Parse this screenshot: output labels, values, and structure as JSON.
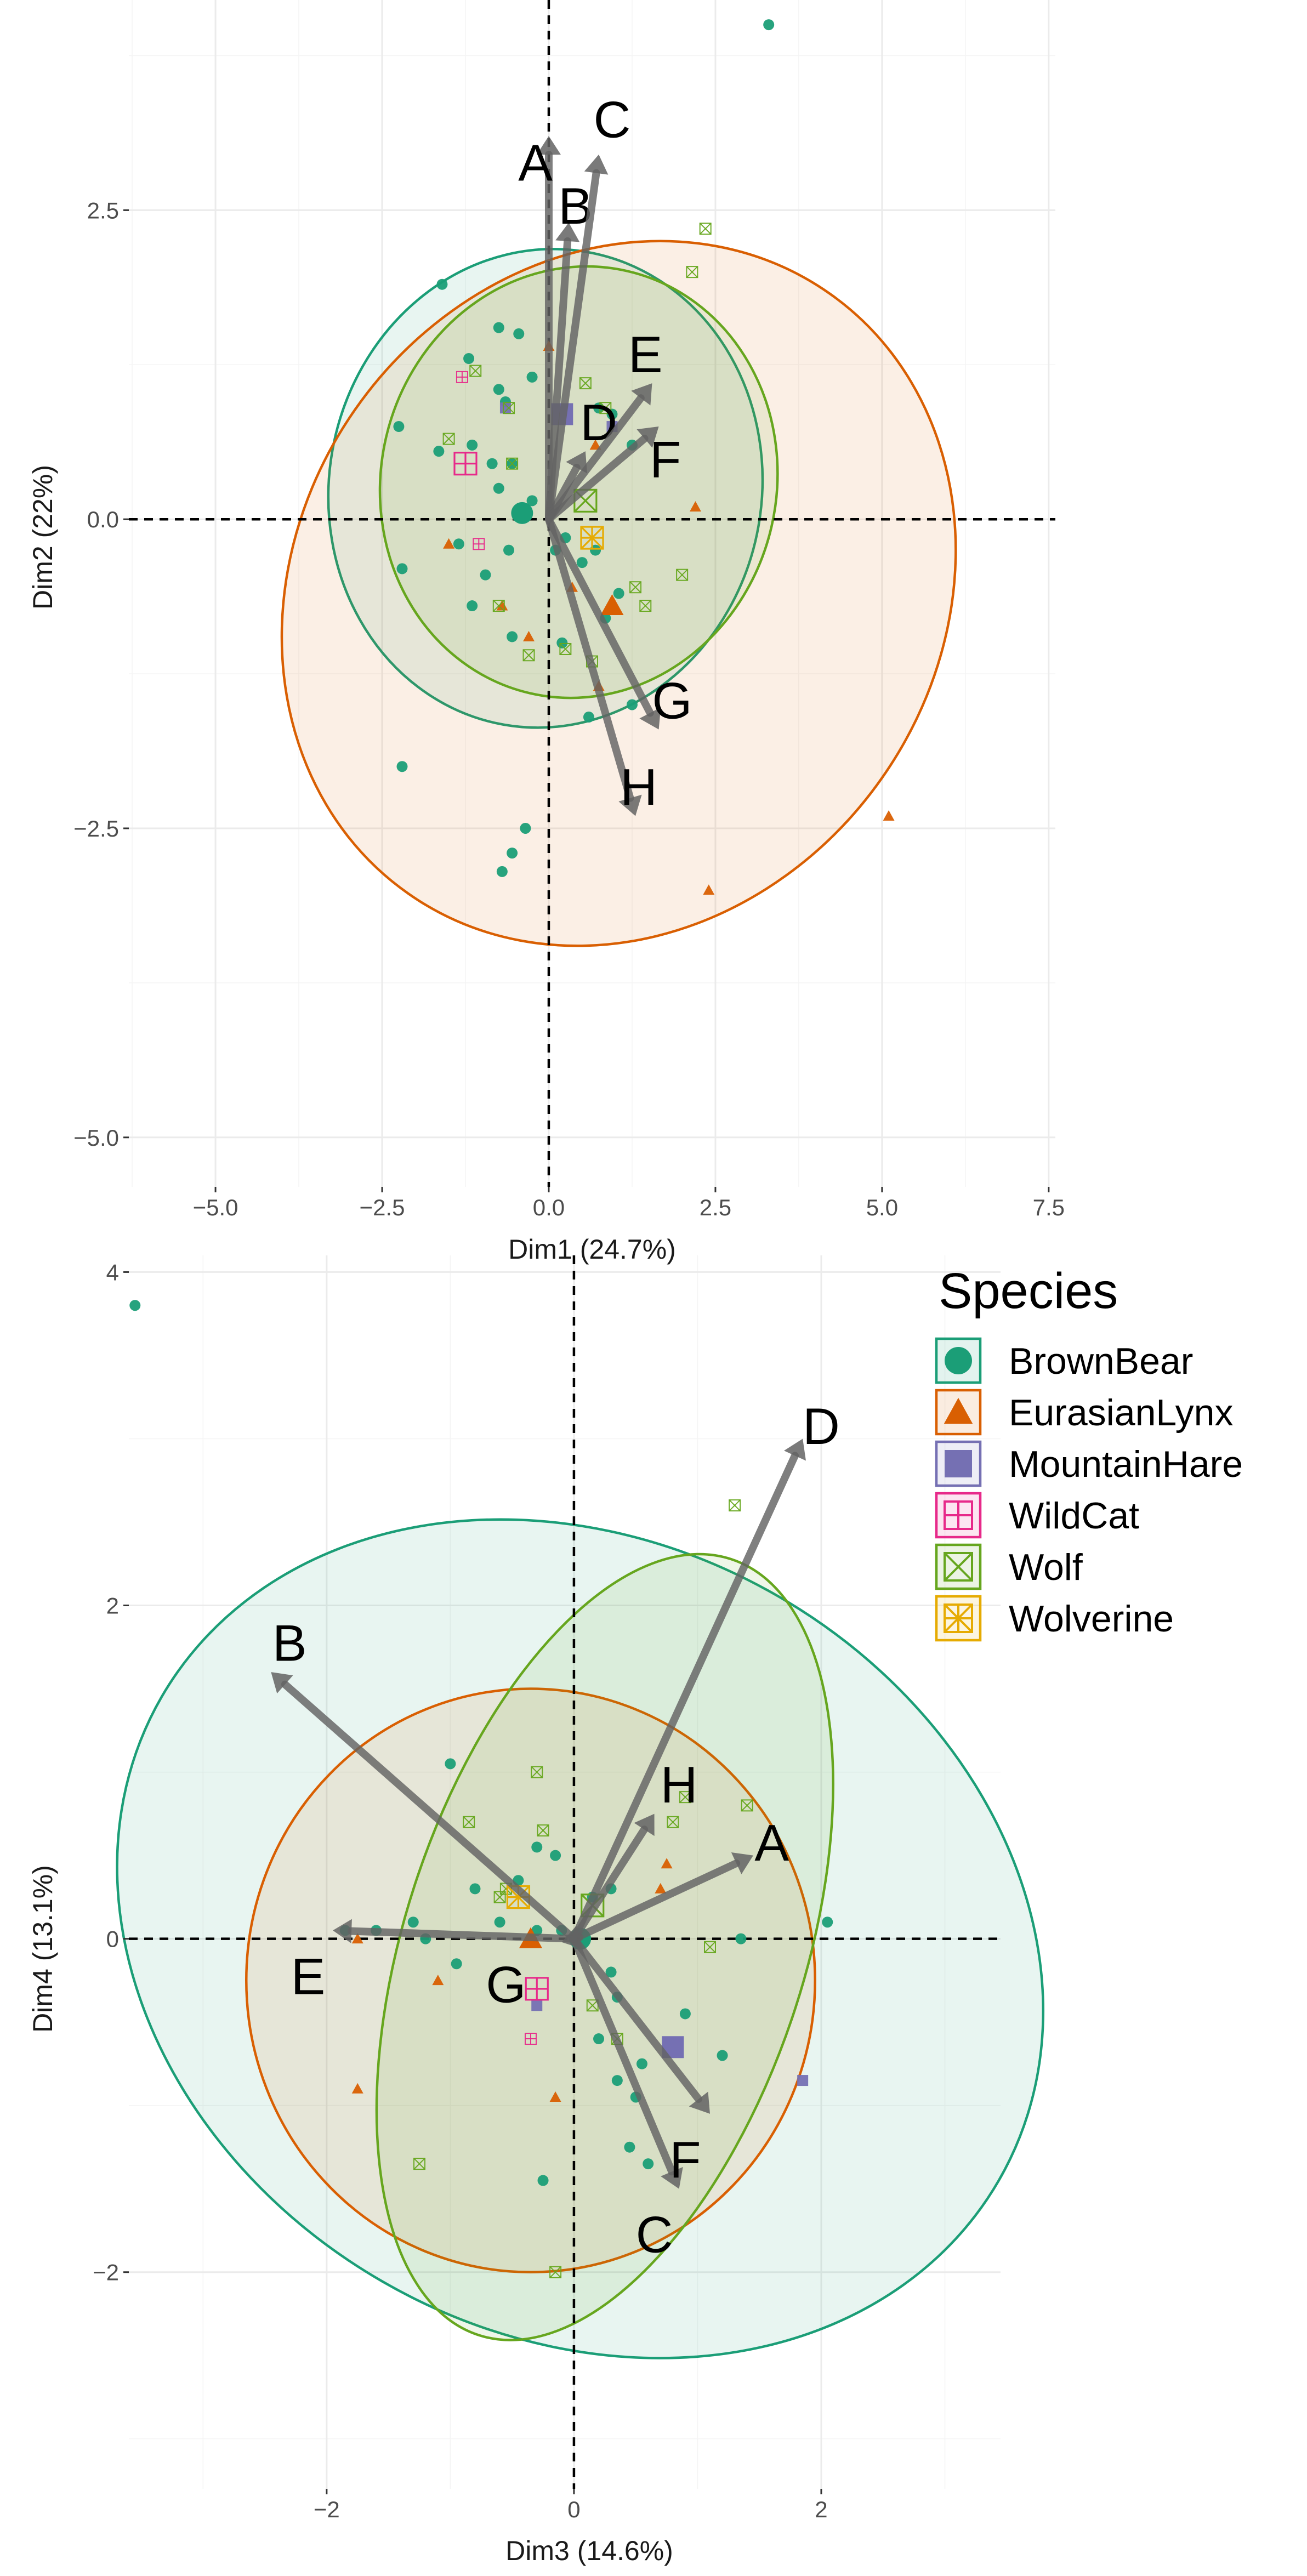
{
  "colors": {
    "BrownBear": "#1b9e77",
    "EurasianLynx": "#d95f02",
    "MountainHare": "#7570b3",
    "WildCat": "#e7298a",
    "Wolf": "#66a61e",
    "Wolverine": "#e6ab02"
  },
  "legend": {
    "title": "Species",
    "items": [
      {
        "name": "BrownBear",
        "shape": "circle"
      },
      {
        "name": "EurasianLynx",
        "shape": "triangle"
      },
      {
        "name": "MountainHare",
        "shape": "square"
      },
      {
        "name": "WildCat",
        "shape": "square-plus"
      },
      {
        "name": "Wolf",
        "shape": "square-x"
      },
      {
        "name": "Wolverine",
        "shape": "asterisk-square"
      }
    ]
  },
  "chart_data": [
    {
      "type": "scatter",
      "id": "top",
      "subtype": "pca-biplot",
      "xlabel": "Dim1 (24.7%)",
      "ylabel": "Dim2 (22%)",
      "xlim": [
        -6.3,
        7.6
      ],
      "ylim": [
        -5.4,
        4.2
      ],
      "xticks": [
        -5,
        -2.5,
        0,
        2.5,
        5,
        7.5
      ],
      "xtick_labels": [
        "−5.0",
        "−2.5",
        "0.0",
        "2.5",
        "5.0",
        "7.5"
      ],
      "yticks": [
        -5,
        -2.5,
        0,
        2.5
      ],
      "ytick_labels": [
        "−5.0",
        "−2.5",
        "0.0",
        "2.5"
      ],
      "arrows": [
        {
          "label": "A",
          "x": 0.0,
          "y": 3.1,
          "lx": -0.2,
          "ly": 2.85
        },
        {
          "label": "B",
          "x": 0.3,
          "y": 2.4,
          "lx": 0.4,
          "ly": 2.5
        },
        {
          "label": "C",
          "x": 0.75,
          "y": 2.95,
          "lx": 0.95,
          "ly": 3.2
        },
        {
          "label": "D",
          "x": 0.55,
          "y": 0.55,
          "lx": 0.75,
          "ly": 0.75
        },
        {
          "label": "E",
          "x": 1.55,
          "y": 1.1,
          "lx": 1.45,
          "ly": 1.3
        },
        {
          "label": "F",
          "x": 1.65,
          "y": 0.75,
          "lx": 1.75,
          "ly": 0.45
        },
        {
          "label": "G",
          "x": 1.65,
          "y": -1.7,
          "lx": 1.85,
          "ly": -1.5
        },
        {
          "label": "H",
          "x": 1.3,
          "y": -2.4,
          "lx": 1.35,
          "ly": -2.2
        }
      ],
      "ellipses": [
        {
          "species": "BrownBear",
          "cx": -0.05,
          "cy": 0.25,
          "rx": 3.6,
          "ry": 1.75,
          "angle": -80
        },
        {
          "species": "EurasianLynx",
          "cx": 1.05,
          "cy": -0.6,
          "rx": 5.5,
          "ry": 2.6,
          "angle": -55
        },
        {
          "species": "Wolf",
          "cx": 0.45,
          "cy": 0.3,
          "rx": 3.25,
          "ry": 1.6,
          "angle": -77
        }
      ],
      "points": [
        {
          "species": "BrownBear",
          "x": 3.3,
          "y": 4.0
        },
        {
          "species": "BrownBear",
          "x": -1.6,
          "y": 1.9
        },
        {
          "species": "BrownBear",
          "x": -0.75,
          "y": 1.55
        },
        {
          "species": "BrownBear",
          "x": -1.2,
          "y": 1.3
        },
        {
          "species": "BrownBear",
          "x": -0.45,
          "y": 1.5
        },
        {
          "species": "BrownBear",
          "x": -0.75,
          "y": 1.05
        },
        {
          "species": "BrownBear",
          "x": -0.65,
          "y": 0.95
        },
        {
          "species": "BrownBear",
          "x": -2.25,
          "y": 0.75
        },
        {
          "species": "BrownBear",
          "x": -1.65,
          "y": 0.55
        },
        {
          "species": "BrownBear",
          "x": -1.15,
          "y": 0.6
        },
        {
          "species": "BrownBear",
          "x": -0.85,
          "y": 0.45
        },
        {
          "species": "BrownBear",
          "x": -0.55,
          "y": 0.45
        },
        {
          "species": "BrownBear",
          "x": -0.75,
          "y": 0.25
        },
        {
          "species": "BrownBear",
          "x": -0.25,
          "y": 0.15
        },
        {
          "species": "BrownBear",
          "x": -2.2,
          "y": -0.4
        },
        {
          "species": "BrownBear",
          "x": -1.35,
          "y": -0.2
        },
        {
          "species": "BrownBear",
          "x": -0.95,
          "y": -0.45
        },
        {
          "species": "BrownBear",
          "x": -0.6,
          "y": -0.25
        },
        {
          "species": "BrownBear",
          "x": -1.15,
          "y": -0.7
        },
        {
          "species": "BrownBear",
          "x": -0.55,
          "y": -0.95
        },
        {
          "species": "BrownBear",
          "x": 0.1,
          "y": -0.25
        },
        {
          "species": "BrownBear",
          "x": 0.25,
          "y": -0.15
        },
        {
          "species": "BrownBear",
          "x": 0.5,
          "y": -0.35
        },
        {
          "species": "BrownBear",
          "x": 0.7,
          "y": -0.25
        },
        {
          "species": "BrownBear",
          "x": 0.75,
          "y": 0.9
        },
        {
          "species": "BrownBear",
          "x": 0.95,
          "y": 0.85
        },
        {
          "species": "BrownBear",
          "x": 1.25,
          "y": 0.6
        },
        {
          "species": "BrownBear",
          "x": 0.85,
          "y": -0.8
        },
        {
          "species": "BrownBear",
          "x": 1.05,
          "y": -0.6
        },
        {
          "species": "BrownBear",
          "x": 0.2,
          "y": -1.0
        },
        {
          "species": "BrownBear",
          "x": 0.6,
          "y": -1.6
        },
        {
          "species": "BrownBear",
          "x": 1.25,
          "y": -1.5
        },
        {
          "species": "BrownBear",
          "x": -2.2,
          "y": -2.0
        },
        {
          "species": "BrownBear",
          "x": -0.35,
          "y": -2.5
        },
        {
          "species": "BrownBear",
          "x": -0.55,
          "y": -2.7
        },
        {
          "species": "BrownBear",
          "x": -0.7,
          "y": -2.85
        },
        {
          "species": "BrownBear",
          "x": -0.25,
          "y": 1.15
        },
        {
          "species": "BrownBear",
          "x": -0.4,
          "y": 0.05,
          "centroid": true
        },
        {
          "species": "EurasianLynx",
          "x": 0.0,
          "y": 1.4
        },
        {
          "species": "EurasianLynx",
          "x": -1.5,
          "y": -0.2
        },
        {
          "species": "EurasianLynx",
          "x": -0.3,
          "y": -0.95
        },
        {
          "species": "EurasianLynx",
          "x": -0.7,
          "y": -0.7
        },
        {
          "species": "EurasianLynx",
          "x": 0.35,
          "y": -0.55
        },
        {
          "species": "EurasianLynx",
          "x": 0.7,
          "y": 0.6
        },
        {
          "species": "EurasianLynx",
          "x": 2.2,
          "y": 0.1
        },
        {
          "species": "EurasianLynx",
          "x": 0.75,
          "y": -1.35
        },
        {
          "species": "EurasianLynx",
          "x": 5.1,
          "y": -2.4
        },
        {
          "species": "EurasianLynx",
          "x": 2.4,
          "y": -3.0
        },
        {
          "species": "EurasianLynx",
          "x": 0.95,
          "y": -0.7,
          "centroid": true
        },
        {
          "species": "MountainHare",
          "x": -0.65,
          "y": 0.9
        },
        {
          "species": "MountainHare",
          "x": 0.95,
          "y": 0.75
        },
        {
          "species": "MountainHare",
          "x": 0.2,
          "y": 0.85,
          "centroid": true
        },
        {
          "species": "WildCat",
          "x": -1.3,
          "y": 1.15
        },
        {
          "species": "WildCat",
          "x": -1.05,
          "y": -0.2
        },
        {
          "species": "WildCat",
          "x": -1.25,
          "y": 0.45,
          "centroid": true
        },
        {
          "species": "Wolf",
          "x": 2.35,
          "y": 2.35
        },
        {
          "species": "Wolf",
          "x": 2.15,
          "y": 2.0
        },
        {
          "species": "Wolf",
          "x": -1.1,
          "y": 1.2
        },
        {
          "species": "Wolf",
          "x": 0.55,
          "y": 1.1
        },
        {
          "species": "Wolf",
          "x": -0.6,
          "y": 0.9
        },
        {
          "species": "Wolf",
          "x": 0.85,
          "y": 0.9
        },
        {
          "species": "Wolf",
          "x": -1.5,
          "y": 0.65
        },
        {
          "species": "Wolf",
          "x": -0.55,
          "y": 0.45
        },
        {
          "species": "Wolf",
          "x": 1.3,
          "y": -0.55
        },
        {
          "species": "Wolf",
          "x": 2.0,
          "y": -0.45
        },
        {
          "species": "Wolf",
          "x": 1.45,
          "y": -0.7
        },
        {
          "species": "Wolf",
          "x": -0.75,
          "y": -0.7
        },
        {
          "species": "Wolf",
          "x": -0.3,
          "y": -1.1
        },
        {
          "species": "Wolf",
          "x": 0.65,
          "y": -1.15
        },
        {
          "species": "Wolf",
          "x": 0.25,
          "y": -1.05
        },
        {
          "species": "Wolf",
          "x": 0.55,
          "y": 0.15,
          "centroid": true
        },
        {
          "species": "Wolverine",
          "x": 0.65,
          "y": -0.15,
          "centroid": true
        }
      ]
    },
    {
      "type": "scatter",
      "id": "bottom",
      "subtype": "pca-biplot",
      "xlabel": "Dim3 (14.6%)",
      "ylabel": "Dim4 (13.1%)",
      "xlim": [
        -3.6,
        3.45
      ],
      "ylim": [
        -3.3,
        4.1
      ],
      "xticks": [
        -2,
        0,
        2
      ],
      "xtick_labels": [
        "−2",
        "0",
        "2"
      ],
      "yticks": [
        -2,
        0,
        2,
        4
      ],
      "ytick_labels": [
        "−2",
        "0",
        "2",
        "4"
      ],
      "arrows": [
        {
          "label": "A",
          "x": 1.45,
          "y": 0.5,
          "lx": 1.6,
          "ly": 0.55
        },
        {
          "label": "B",
          "x": -2.45,
          "y": 1.6,
          "lx": -2.3,
          "ly": 1.75
        },
        {
          "label": "C",
          "x": 0.85,
          "y": -1.5,
          "lx": 0.65,
          "ly": -1.8
        },
        {
          "label": "D",
          "x": 1.85,
          "y": 3.0,
          "lx": 2.0,
          "ly": 3.05
        },
        {
          "label": "E",
          "x": -1.95,
          "y": 0.05,
          "lx": -2.15,
          "ly": -0.25
        },
        {
          "label": "F",
          "x": 1.1,
          "y": -1.05,
          "lx": 0.9,
          "ly": -1.35
        },
        {
          "label": "G",
          "x": -0.1,
          "y": -0.02,
          "lx": -0.55,
          "ly": -0.3
        },
        {
          "label": "H",
          "x": 0.65,
          "y": 0.75,
          "lx": 0.85,
          "ly": 0.9
        }
      ],
      "ellipses": [
        {
          "species": "BrownBear",
          "cx": 0.05,
          "cy": 0.0,
          "rx": 3.2,
          "ry": 2.9,
          "angle": -60
        },
        {
          "species": "EurasianLynx",
          "cx": -0.35,
          "cy": -0.25,
          "rx": 2.3,
          "ry": 1.75,
          "angle": 0
        },
        {
          "species": "Wolf",
          "cx": 0.25,
          "cy": -0.05,
          "rx": 3.3,
          "ry": 1.2,
          "angle": -72
        }
      ],
      "points": [
        {
          "species": "BrownBear",
          "x": -3.55,
          "y": 3.8
        },
        {
          "species": "BrownBear",
          "x": -1.0,
          "y": 1.05
        },
        {
          "species": "BrownBear",
          "x": -0.3,
          "y": 0.55
        },
        {
          "species": "BrownBear",
          "x": -0.1,
          "y": 0.05
        },
        {
          "species": "BrownBear",
          "x": -0.45,
          "y": 0.35
        },
        {
          "species": "BrownBear",
          "x": -0.8,
          "y": 0.3
        },
        {
          "species": "BrownBear",
          "x": -0.6,
          "y": 0.1
        },
        {
          "species": "BrownBear",
          "x": -0.15,
          "y": 0.5
        },
        {
          "species": "BrownBear",
          "x": -0.3,
          "y": 0.05
        },
        {
          "species": "BrownBear",
          "x": -1.6,
          "y": 0.05
        },
        {
          "species": "BrownBear",
          "x": -1.3,
          "y": 0.1
        },
        {
          "species": "BrownBear",
          "x": -1.85,
          "y": 0.05
        },
        {
          "species": "BrownBear",
          "x": -1.2,
          "y": 0.0
        },
        {
          "species": "BrownBear",
          "x": -0.95,
          "y": -0.15
        },
        {
          "species": "BrownBear",
          "x": 0.15,
          "y": 0.25
        },
        {
          "species": "BrownBear",
          "x": 0.3,
          "y": 0.3
        },
        {
          "species": "BrownBear",
          "x": 0.2,
          "y": -0.6
        },
        {
          "species": "BrownBear",
          "x": 0.35,
          "y": -0.85
        },
        {
          "species": "BrownBear",
          "x": 0.5,
          "y": -0.95
        },
        {
          "species": "BrownBear",
          "x": 0.55,
          "y": -0.75
        },
        {
          "species": "BrownBear",
          "x": 0.35,
          "y": -0.35
        },
        {
          "species": "BrownBear",
          "x": 0.9,
          "y": -0.45
        },
        {
          "species": "BrownBear",
          "x": 1.2,
          "y": -0.7
        },
        {
          "species": "BrownBear",
          "x": 1.35,
          "y": 0.0
        },
        {
          "species": "BrownBear",
          "x": 2.05,
          "y": 0.1
        },
        {
          "species": "BrownBear",
          "x": 0.45,
          "y": -1.25
        },
        {
          "species": "BrownBear",
          "x": 0.6,
          "y": -1.35
        },
        {
          "species": "BrownBear",
          "x": -0.25,
          "y": -1.45
        },
        {
          "species": "BrownBear",
          "x": 0.3,
          "y": -0.2
        },
        {
          "species": "BrownBear",
          "x": 0.05,
          "y": 0.0,
          "centroid": true
        },
        {
          "species": "EurasianLynx",
          "x": -1.75,
          "y": 0.0
        },
        {
          "species": "EurasianLynx",
          "x": -1.1,
          "y": -0.25
        },
        {
          "species": "EurasianLynx",
          "x": -1.75,
          "y": -0.9
        },
        {
          "species": "EurasianLynx",
          "x": -0.15,
          "y": -0.95
        },
        {
          "species": "EurasianLynx",
          "x": 0.75,
          "y": 0.45
        },
        {
          "species": "EurasianLynx",
          "x": 0.7,
          "y": 0.3
        },
        {
          "species": "EurasianLynx",
          "x": -0.35,
          "y": 0.0,
          "centroid": true
        },
        {
          "species": "MountainHare",
          "x": 1.85,
          "y": -0.85
        },
        {
          "species": "MountainHare",
          "x": -0.3,
          "y": -0.4
        },
        {
          "species": "MountainHare",
          "x": 0.8,
          "y": -0.65,
          "centroid": true
        },
        {
          "species": "WildCat",
          "x": -0.35,
          "y": -0.6
        },
        {
          "species": "WildCat",
          "x": -0.3,
          "y": -0.3,
          "centroid": true
        },
        {
          "species": "Wolf",
          "x": 1.3,
          "y": 2.6
        },
        {
          "species": "Wolf",
          "x": -0.3,
          "y": 1.0
        },
        {
          "species": "Wolf",
          "x": -0.85,
          "y": 0.7
        },
        {
          "species": "Wolf",
          "x": -0.25,
          "y": 0.65
        },
        {
          "species": "Wolf",
          "x": 0.8,
          "y": 0.7
        },
        {
          "species": "Wolf",
          "x": 1.4,
          "y": 0.8
        },
        {
          "species": "Wolf",
          "x": 0.9,
          "y": 0.85
        },
        {
          "species": "Wolf",
          "x": -0.55,
          "y": 0.3
        },
        {
          "species": "Wolf",
          "x": -0.6,
          "y": 0.25
        },
        {
          "species": "Wolf",
          "x": 1.1,
          "y": -0.05
        },
        {
          "species": "Wolf",
          "x": 0.15,
          "y": -0.4
        },
        {
          "species": "Wolf",
          "x": 0.35,
          "y": -0.6
        },
        {
          "species": "Wolf",
          "x": -1.25,
          "y": -1.35
        },
        {
          "species": "Wolf",
          "x": -0.15,
          "y": -2.0
        },
        {
          "species": "Wolf",
          "x": 0.15,
          "y": 0.2,
          "centroid": true
        },
        {
          "species": "Wolverine",
          "x": -0.45,
          "y": 0.25,
          "centroid": true
        }
      ]
    }
  ]
}
